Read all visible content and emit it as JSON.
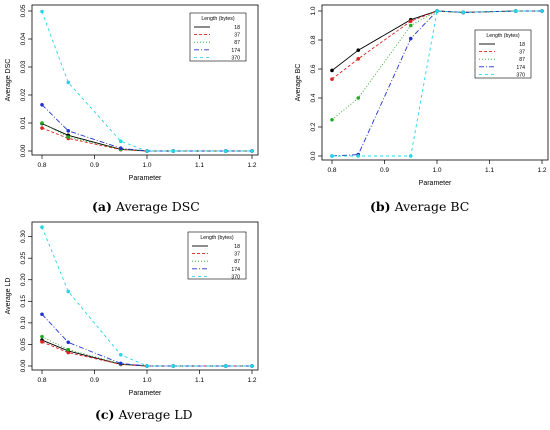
{
  "captions": {
    "a": {
      "letter": "(a)",
      "text": "Average DSC"
    },
    "b": {
      "letter": "(b)",
      "text": "Average BC"
    },
    "c": {
      "letter": "(c)",
      "text": "Average LD"
    }
  },
  "chart_data": [
    {
      "type": "line",
      "ylabel": "Average DSC",
      "xlabel": "Parameter",
      "legend_title": "Length (bytes)",
      "legend_position": "top-right",
      "x": [
        0.8,
        0.85,
        0.95,
        1.0,
        1.05,
        1.15,
        1.2
      ],
      "xticks": [
        "0.8",
        "0.9",
        "1.0",
        "1.1",
        "1.2"
      ],
      "yticks": [
        "0.00",
        "0.01",
        "0.02",
        "0.03",
        "0.04",
        "0.05"
      ],
      "ylim": [
        0,
        0.05
      ],
      "series": [
        {
          "name": "18",
          "color": "#000000",
          "values": [
            0.0098,
            0.0056,
            0.0006,
            0.0,
            0.0,
            0.0,
            0.0
          ]
        },
        {
          "name": "37",
          "color": "#dd2222",
          "values": [
            0.0082,
            0.0045,
            0.0005,
            0.0,
            0.0,
            0.0,
            0.0
          ]
        },
        {
          "name": "87",
          "color": "#22aa22",
          "values": [
            0.01,
            0.005,
            0.0006,
            0.0,
            0.0,
            0.0,
            0.0
          ]
        },
        {
          "name": "174",
          "color": "#2233cc",
          "values": [
            0.0165,
            0.0072,
            0.001,
            0.0,
            0.0,
            0.0,
            0.0
          ]
        },
        {
          "name": "370",
          "color": "#22d8e8",
          "values": [
            0.0498,
            0.0245,
            0.0035,
            0.0,
            0.0,
            0.0,
            0.0
          ]
        }
      ]
    },
    {
      "type": "line",
      "ylabel": "Average BC",
      "xlabel": "Parameter",
      "legend_title": "Length (bytes)",
      "legend_position": "bottom-right",
      "x": [
        0.8,
        0.85,
        0.95,
        1.0,
        1.05,
        1.15,
        1.2
      ],
      "xticks": [
        "0.8",
        "0.9",
        "1.0",
        "1.1",
        "1.2"
      ],
      "yticks": [
        "0.0",
        "0.2",
        "0.4",
        "0.6",
        "0.8",
        "1.0"
      ],
      "ylim": [
        0,
        1.0
      ],
      "series": [
        {
          "name": "18",
          "color": "#000000",
          "values": [
            0.59,
            0.73,
            0.94,
            1.0,
            0.99,
            1.0,
            1.0
          ]
        },
        {
          "name": "37",
          "color": "#dd2222",
          "values": [
            0.53,
            0.67,
            0.93,
            1.0,
            0.99,
            1.0,
            1.0
          ]
        },
        {
          "name": "87",
          "color": "#22aa22",
          "values": [
            0.25,
            0.4,
            0.9,
            1.0,
            0.99,
            1.0,
            1.0
          ]
        },
        {
          "name": "174",
          "color": "#2233cc",
          "values": [
            0.0,
            0.01,
            0.81,
            1.0,
            0.99,
            1.0,
            1.0
          ]
        },
        {
          "name": "370",
          "color": "#22d8e8",
          "values": [
            0.0,
            0.0,
            0.0,
            1.0,
            0.99,
            1.0,
            1.0
          ]
        }
      ]
    },
    {
      "type": "line",
      "ylabel": "Average LD",
      "xlabel": "Parameter",
      "legend_title": "Length (bytes)",
      "legend_position": "top-right",
      "x": [
        0.8,
        0.85,
        0.95,
        1.0,
        1.05,
        1.15,
        1.2
      ],
      "xticks": [
        "0.8",
        "0.9",
        "1.0",
        "1.1",
        "1.2"
      ],
      "yticks": [
        "0.00",
        "0.05",
        "0.10",
        "0.15",
        "0.20",
        "0.25",
        "0.30"
      ],
      "ylim": [
        0,
        0.32
      ],
      "series": [
        {
          "name": "18",
          "color": "#000000",
          "values": [
            0.06,
            0.035,
            0.004,
            0.0,
            0.0,
            0.0,
            0.0
          ]
        },
        {
          "name": "37",
          "color": "#dd2222",
          "values": [
            0.056,
            0.031,
            0.004,
            0.0,
            0.0,
            0.0,
            0.0
          ]
        },
        {
          "name": "87",
          "color": "#22aa22",
          "values": [
            0.068,
            0.038,
            0.005,
            0.0,
            0.0,
            0.0,
            0.0
          ]
        },
        {
          "name": "174",
          "color": "#2233cc",
          "values": [
            0.12,
            0.055,
            0.006,
            0.0,
            0.0,
            0.0,
            0.0
          ]
        },
        {
          "name": "370",
          "color": "#22d8e8",
          "values": [
            0.322,
            0.173,
            0.026,
            0.0,
            0.0,
            0.0,
            0.0
          ]
        }
      ]
    }
  ]
}
